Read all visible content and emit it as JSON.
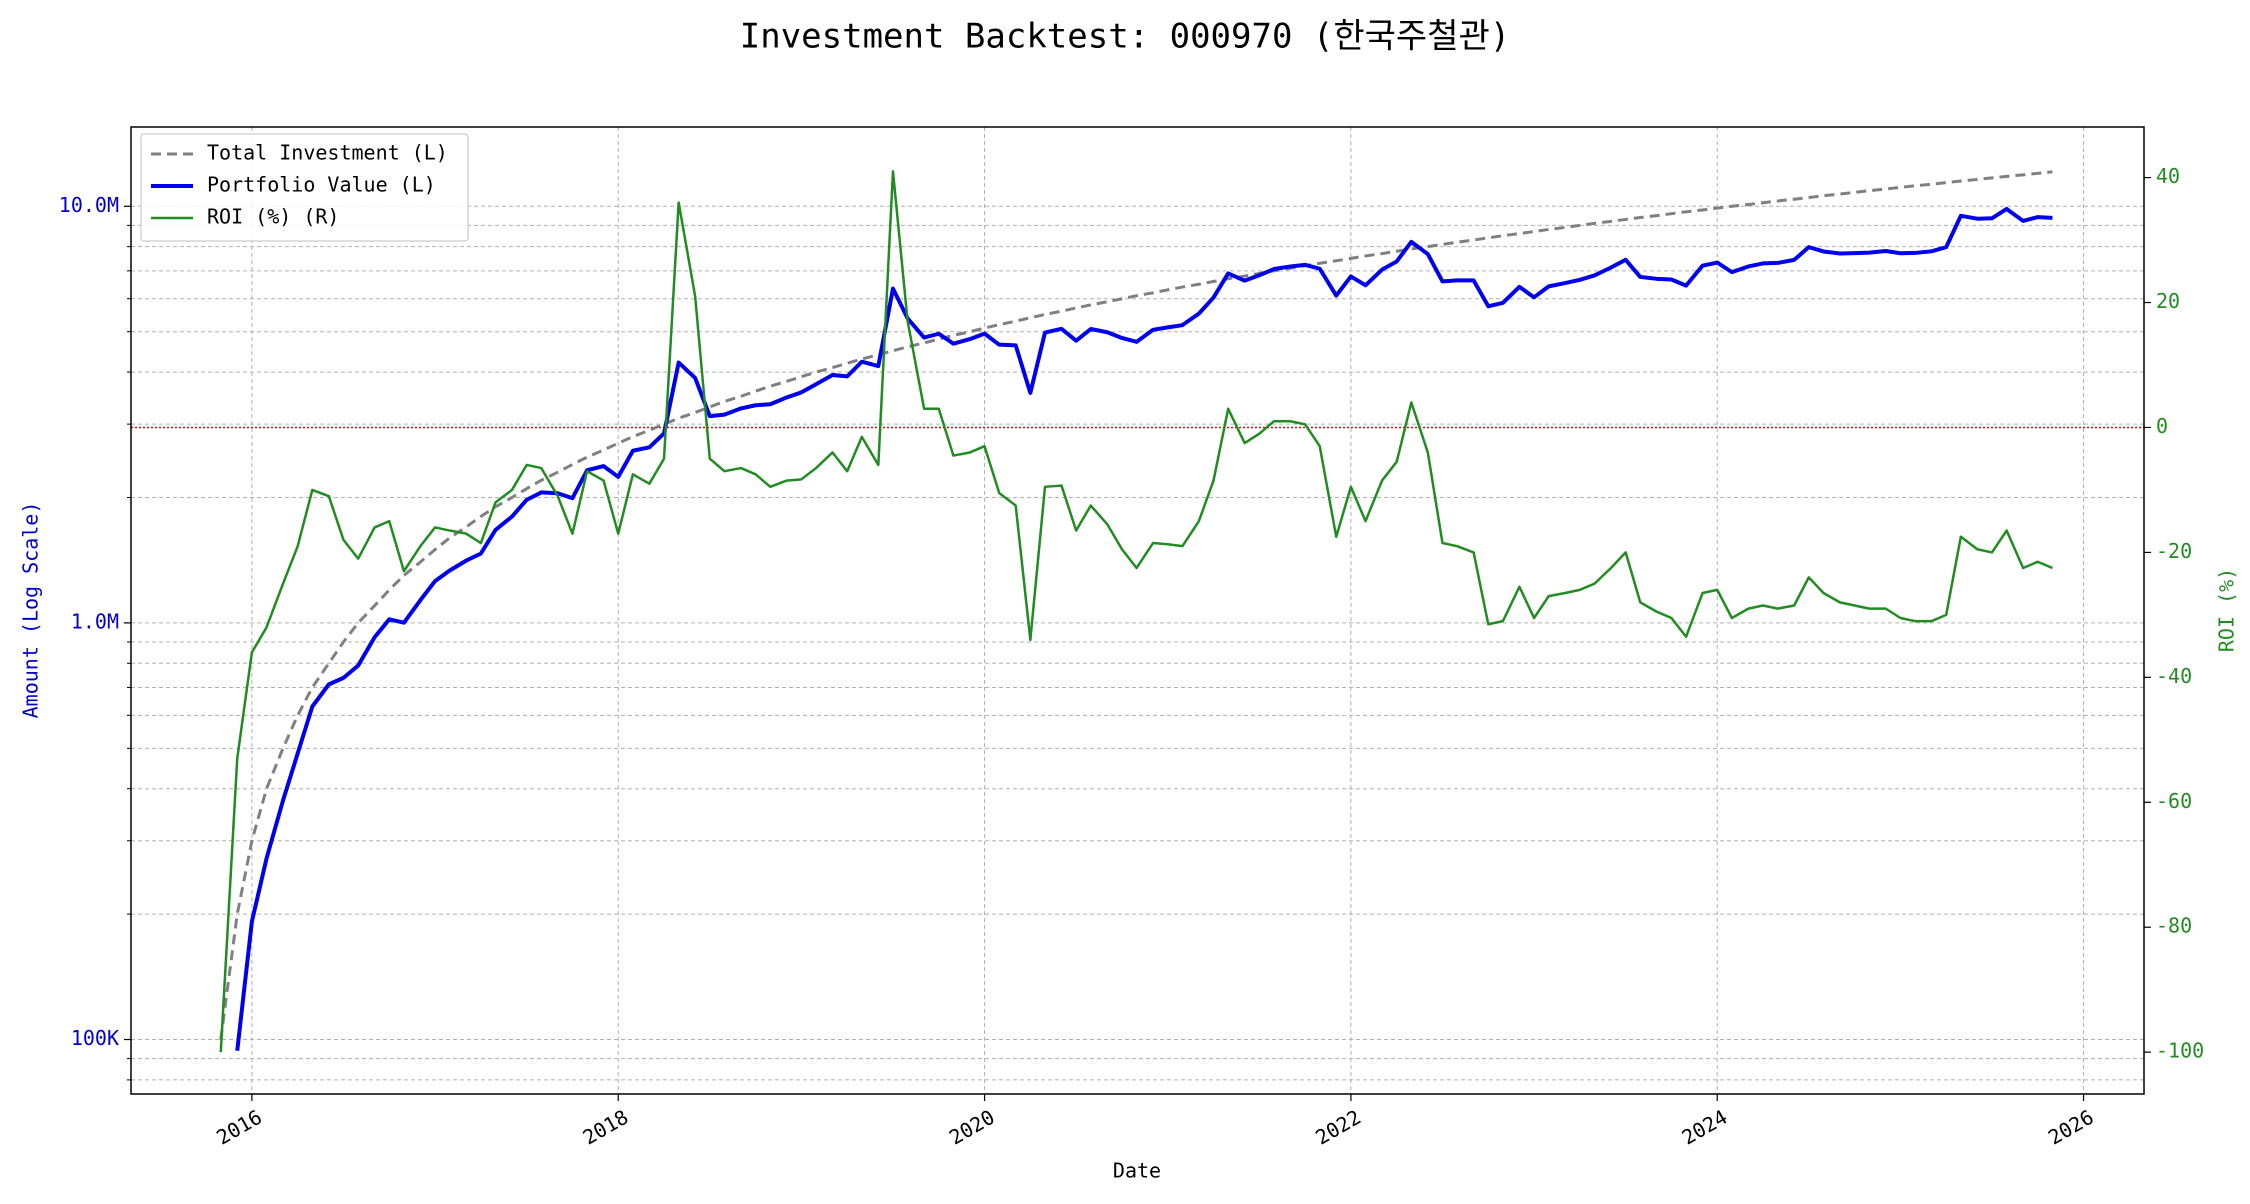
{
  "chart_data": {
    "type": "line",
    "title": "Investment Backtest: 000970 (한국주철관)",
    "xlabel": "Date",
    "ylabel": "Amount (Log Scale)",
    "y2label": "ROI (%)",
    "ycolor": "#0000cc",
    "y2color": "#228b22",
    "log_y": true,
    "grid": true,
    "legend": "upper left",
    "xlim": [
      2015.34,
      2026.33
    ],
    "xticks": [
      2016,
      2018,
      2020,
      2022,
      2024,
      2026
    ],
    "ylim": [
      74000,
      15500000
    ],
    "yticks": [
      {
        "value": 100000,
        "label": "100K"
      },
      {
        "value": 1000000,
        "label": "1.0M"
      },
      {
        "value": 10000000,
        "label": "10.0M"
      }
    ],
    "yticks_minor": [
      80000,
      90000,
      200000,
      300000,
      400000,
      500000,
      600000,
      700000,
      800000,
      900000,
      2000000,
      3000000,
      4000000,
      5000000,
      6000000,
      7000000,
      8000000,
      9000000
    ],
    "y2lim": [
      -106.7,
      48.1
    ],
    "y2ticks": [
      -100,
      -80,
      -60,
      -40,
      -20,
      0,
      20,
      40
    ],
    "hline": {
      "value": 0,
      "axis": "y2",
      "color": "#ff0000"
    },
    "x": [
      2015.83,
      2015.92,
      2016.0,
      2016.08,
      2016.17,
      2016.25,
      2016.33,
      2016.42,
      2016.5,
      2016.58,
      2016.67,
      2016.75,
      2016.83,
      2016.92,
      2017.0,
      2017.08,
      2017.17,
      2017.25,
      2017.33,
      2017.42,
      2017.5,
      2017.58,
      2017.67,
      2017.75,
      2017.83,
      2017.92,
      2018.0,
      2018.08,
      2018.17,
      2018.25,
      2018.33,
      2018.42,
      2018.5,
      2018.58,
      2018.67,
      2018.75,
      2018.83,
      2018.92,
      2019.0,
      2019.08,
      2019.17,
      2019.25,
      2019.33,
      2019.42,
      2019.5,
      2019.58,
      2019.67,
      2019.75,
      2019.83,
      2019.92,
      2020.0,
      2020.08,
      2020.17,
      2020.25,
      2020.33,
      2020.42,
      2020.5,
      2020.58,
      2020.67,
      2020.75,
      2020.83,
      2020.92,
      2021.0,
      2021.08,
      2021.17,
      2021.25,
      2021.33,
      2021.42,
      2021.5,
      2021.58,
      2021.67,
      2021.75,
      2021.83,
      2021.92,
      2022.0,
      2022.08,
      2022.17,
      2022.25,
      2022.33,
      2022.42,
      2022.5,
      2022.58,
      2022.67,
      2022.75,
      2022.83,
      2022.92,
      2023.0,
      2023.08,
      2023.17,
      2023.25,
      2023.33,
      2023.42,
      2023.5,
      2023.58,
      2023.67,
      2023.75,
      2023.83,
      2023.92,
      2024.0,
      2024.08,
      2024.17,
      2024.25,
      2024.33,
      2024.42,
      2024.5,
      2024.58,
      2024.67,
      2024.75,
      2024.83,
      2024.92,
      2025.0,
      2025.08,
      2025.17,
      2025.25,
      2025.33,
      2025.42,
      2025.5,
      2025.58,
      2025.67,
      2025.75,
      2025.83
    ],
    "series": [
      {
        "name": "Total Investment (L)",
        "color": "#808080",
        "linestyle": "dashed",
        "width": 3,
        "axis": "y",
        "values": [
          100000,
          200000,
          300000,
          400000,
          500000,
          600000,
          700000,
          800000,
          900000,
          1000000,
          1100000,
          1200000,
          1300000,
          1400000,
          1500000,
          1600000,
          1700000,
          1800000,
          1900000,
          2000000,
          2100000,
          2200000,
          2300000,
          2400000,
          2500000,
          2600000,
          2700000,
          2800000,
          2900000,
          3000000,
          3100000,
          3200000,
          3300000,
          3400000,
          3500000,
          3600000,
          3700000,
          3800000,
          3900000,
          4000000,
          4100000,
          4200000,
          4300000,
          4400000,
          4500000,
          4600000,
          4700000,
          4800000,
          4900000,
          5000000,
          5100000,
          5200000,
          5300000,
          5400000,
          5500000,
          5600000,
          5700000,
          5800000,
          5900000,
          6000000,
          6100000,
          6200000,
          6300000,
          6400000,
          6500000,
          6600000,
          6700000,
          6800000,
          6900000,
          7000000,
          7100000,
          7200000,
          7300000,
          7400000,
          7500000,
          7600000,
          7700000,
          7800000,
          7900000,
          8000000,
          8100000,
          8200000,
          8300000,
          8400000,
          8500000,
          8600000,
          8700000,
          8800000,
          8900000,
          9000000,
          9100000,
          9200000,
          9300000,
          9400000,
          9500000,
          9600000,
          9700000,
          9800000,
          9900000,
          10000000,
          10100000,
          10200000,
          10300000,
          10400000,
          10500000,
          10600000,
          10700000,
          10800000,
          10900000,
          11000000,
          11100000,
          11200000,
          11300000,
          11400000,
          11500000,
          11600000,
          11700000,
          11800000,
          11900000,
          12000000,
          12100000
        ]
      },
      {
        "name": "Portfolio Value (L)",
        "color": "#0000ee",
        "linestyle": "solid",
        "width": 4,
        "axis": "y",
        "values": [
          null,
          94000,
          192000,
          272000,
          375000,
          486000,
          630000,
          712000,
          738000,
          790000,
          924000,
          1020000,
          1001000,
          1134000,
          1260000,
          1336000,
          1411000,
          1467000,
          1672000,
          1800000,
          1974000,
          2057000,
          2047000,
          1992000,
          2325000,
          2379000,
          2241000,
          2590000,
          2639000,
          2850000,
          4216000,
          3872000,
          3135000,
          3162000,
          3272500,
          3330000,
          3348500,
          3477000,
          3576300,
          3740000,
          3936000,
          3906000,
          4235500,
          4136000,
          6345000,
          5382000,
          4841000,
          4944000,
          4679500,
          4800000,
          4947000,
          4654000,
          4637500,
          3564000,
          4977500,
          5079200,
          4759500,
          5075000,
          4985500,
          4830000,
          4727500,
          5053000,
          5121900,
          5184000,
          5525000,
          6039000,
          6901000,
          6630000,
          6831000,
          7070000,
          7171000,
          7236000,
          7081000,
          6105000,
          6787500,
          6460000,
          7045500,
          7371000,
          8216000,
          7680000,
          6601500,
          6642000,
          6640000,
          5754000,
          5865000,
          6407000,
          6046500,
          6424000,
          6541500,
          6660000,
          6825000,
          7130000,
          7440000,
          6768000,
          6697500,
          6672000,
          6450500,
          7203000,
          7326000,
          6950000,
          7171000,
          7293000,
          7313000,
          7436000,
          7980000,
          7791000,
          7704000,
          7722000,
          7739000,
          7810000,
          7714500,
          7728000,
          7797000,
          7980000,
          9487500,
          9338000,
          9360000,
          9853000,
          9222500,
          9420000,
          9377500
        ]
      },
      {
        "name": "ROI (%) (R)",
        "color": "#228b22",
        "linestyle": "solid",
        "width": 2.5,
        "axis": "y2",
        "values": [
          -100,
          -53,
          -36,
          -32,
          -25,
          -19,
          -10,
          -11,
          -18,
          -21,
          -16,
          -15,
          -23,
          -19,
          -16,
          -16.5,
          -17,
          -18.5,
          -12,
          -10,
          -6,
          -6.5,
          -11,
          -17,
          -7,
          -8.5,
          -17,
          -7.5,
          -9,
          -5,
          36,
          21,
          -5,
          -7,
          -6.5,
          -7.5,
          -9.5,
          -8.5,
          -8.3,
          -6.5,
          -4,
          -7,
          -1.5,
          -6,
          41,
          17,
          3,
          3,
          -4.5,
          -4,
          -3,
          -10.5,
          -12.5,
          -34,
          -9.5,
          -9.3,
          -16.5,
          -12.5,
          -15.5,
          -19.5,
          -22.5,
          -18.5,
          -18.7,
          -19,
          -15,
          -8.5,
          3,
          -2.5,
          -1,
          1,
          1,
          0.5,
          -3,
          -17.5,
          -9.5,
          -15,
          -8.5,
          -5.5,
          4,
          -4,
          -18.5,
          -19,
          -20,
          -31.5,
          -31,
          -25.5,
          -30.5,
          -27,
          -26.5,
          -26,
          -25,
          -22.5,
          -20,
          -28,
          -29.5,
          -30.5,
          -33.5,
          -26.5,
          -26,
          -30.5,
          -29,
          -28.5,
          -29,
          -28.5,
          -24,
          -26.5,
          -28,
          -28.5,
          -29,
          -29,
          -30.5,
          -31,
          -31,
          -30,
          -17.5,
          -19.5,
          -20,
          -16.5,
          -22.5,
          -21.5,
          -22.5
        ]
      }
    ]
  }
}
